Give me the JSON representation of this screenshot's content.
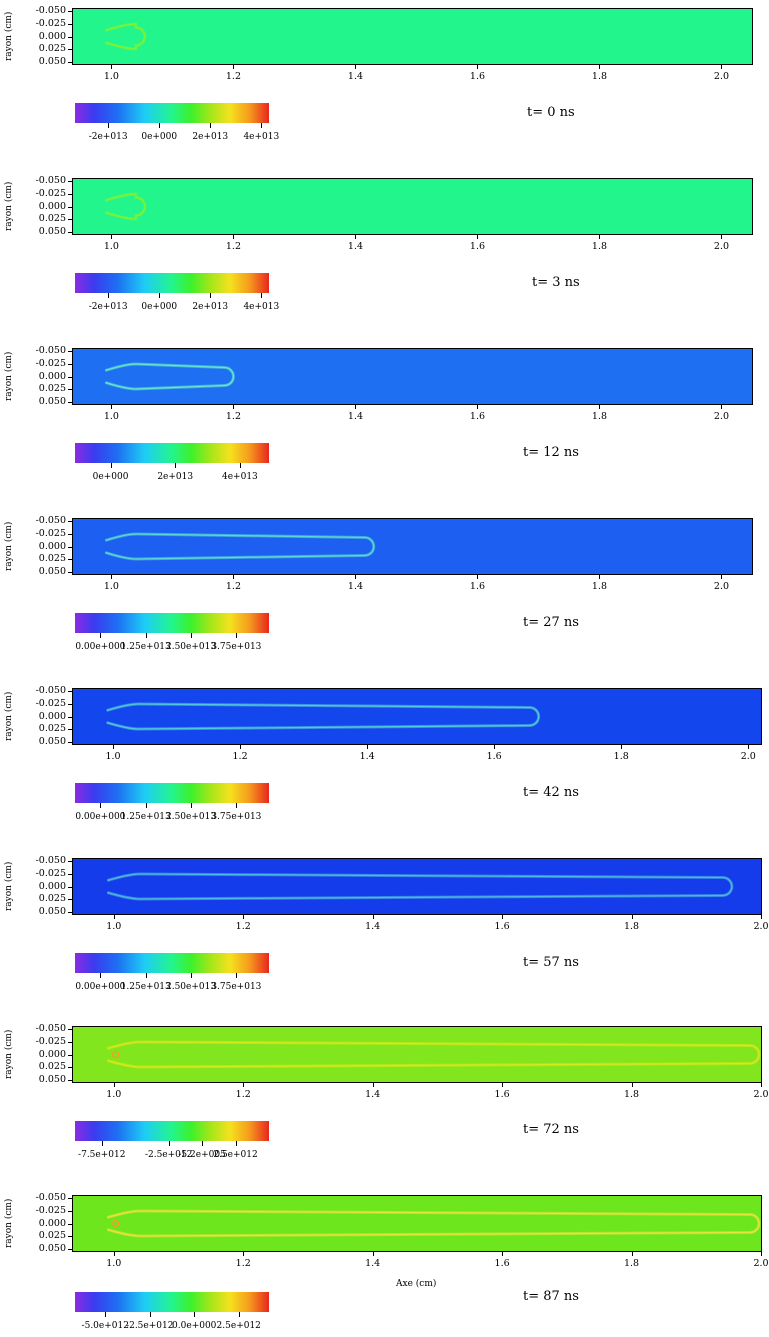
{
  "chart_data": [
    {
      "type": "heatmap",
      "time_label": "t= 0 ns",
      "ylabel": "rayon (cm)",
      "xlabel": "",
      "y_ticks": [
        "-0.050",
        "-0.025",
        "0.000",
        "0.025",
        "0.050"
      ],
      "x_ticks": [
        "1.0",
        "1.2",
        "1.4",
        "1.6",
        "1.8",
        "2.0"
      ],
      "xlim": [
        0.937,
        2.05
      ],
      "ylim": [
        -0.055,
        0.055
      ],
      "front_position": 1.05,
      "background_color": "#23f58d",
      "channel_color": "#7ff230",
      "colorbar_ticks": [
        "-2e+013",
        "0e+000",
        "2e+013",
        "4e+013"
      ],
      "colorbar_values": [
        -20000000000000.0,
        0,
        20000000000000.0,
        40000000000000.0
      ],
      "colorbar_range": [
        -33000000000000.0,
        43000000000000.0
      ]
    },
    {
      "type": "heatmap",
      "time_label": "t= 3 ns",
      "ylabel": "rayon (cm)",
      "xlabel": "",
      "y_ticks": [
        "-0.050",
        "-0.025",
        "0.000",
        "0.025",
        "0.050"
      ],
      "x_ticks": [
        "1.0",
        "1.2",
        "1.4",
        "1.6",
        "1.8",
        "2.0"
      ],
      "xlim": [
        0.937,
        2.05
      ],
      "ylim": [
        -0.055,
        0.055
      ],
      "front_position": 1.05,
      "background_color": "#23f58d",
      "channel_color": "#7ff230",
      "colorbar_ticks": [
        "-2e+013",
        "0e+000",
        "2e+013",
        "4e+013"
      ],
      "colorbar_values": [
        -20000000000000.0,
        0,
        20000000000000.0,
        40000000000000.0
      ],
      "colorbar_range": [
        -33000000000000.0,
        43000000000000.0
      ]
    },
    {
      "type": "heatmap",
      "time_label": "t= 12 ns",
      "ylabel": "rayon (cm)",
      "xlabel": "",
      "y_ticks": [
        "-0.050",
        "-0.025",
        "0.000",
        "0.025",
        "0.050"
      ],
      "x_ticks": [
        "1.0",
        "1.2",
        "1.4",
        "1.6",
        "1.8",
        "2.0"
      ],
      "xlim": [
        0.937,
        2.05
      ],
      "ylim": [
        -0.055,
        0.055
      ],
      "front_position": 1.2,
      "background_color": "#1e6ff2",
      "channel_color": "#63e6c8",
      "colorbar_ticks": [
        "0e+000",
        "2e+013",
        "4e+013"
      ],
      "colorbar_values": [
        0,
        20000000000000.0,
        40000000000000.0
      ],
      "colorbar_range": [
        -11000000000000.0,
        49000000000000.0
      ]
    },
    {
      "type": "heatmap",
      "time_label": "t= 27 ns",
      "ylabel": "rayon (cm)",
      "xlabel": "",
      "y_ticks": [
        "-0.050",
        "-0.025",
        "0.000",
        "0.025",
        "0.050"
      ],
      "x_ticks": [
        "1.0",
        "1.2",
        "1.4",
        "1.6",
        "1.8",
        "2.0"
      ],
      "xlim": [
        0.937,
        2.05
      ],
      "ylim": [
        -0.055,
        0.055
      ],
      "front_position": 1.43,
      "background_color": "#1d5ff0",
      "channel_color": "#5ad8d0",
      "colorbar_ticks": [
        "0.00e+000",
        "1.25e+013",
        "2.50e+013",
        "3.75e+013"
      ],
      "colorbar_values": [
        0,
        12500000000000.0,
        25000000000000.0,
        37500000000000.0
      ],
      "colorbar_range": [
        -7000000000000.0,
        46500000000000.0
      ]
    },
    {
      "type": "heatmap",
      "time_label": "t= 42 ns",
      "ylabel": "rayon (cm)",
      "xlabel": "",
      "y_ticks": [
        "-0.050",
        "-0.025",
        "0.000",
        "0.025",
        "0.050"
      ],
      "x_ticks": [
        "1.0",
        "1.2",
        "1.4",
        "1.6",
        "1.8",
        "2.0"
      ],
      "xlim": [
        0.937,
        2.02
      ],
      "ylim": [
        -0.055,
        0.055
      ],
      "front_position": 1.67,
      "background_color": "#1446ee",
      "channel_color": "#52c8d6",
      "colorbar_ticks": [
        "0.00e+000",
        "1.25e+013",
        "2.50e+013",
        "3.75e+013"
      ],
      "colorbar_values": [
        0,
        12500000000000.0,
        25000000000000.0,
        37500000000000.0
      ],
      "colorbar_range": [
        -7000000000000.0,
        46500000000000.0
      ]
    },
    {
      "type": "heatmap",
      "time_label": "t= 57 ns",
      "ylabel": "rayon (cm)",
      "xlabel": "",
      "y_ticks": [
        "-0.050",
        "-0.025",
        "0.000",
        "0.025",
        "0.050"
      ],
      "x_ticks": [
        "1.0",
        "1.2",
        "1.4",
        "1.6",
        "1.8",
        "2.0"
      ],
      "xlim": [
        0.937,
        2.0
      ],
      "ylim": [
        -0.055,
        0.055
      ],
      "front_position": 1.955,
      "background_color": "#143cea",
      "channel_color": "#4db8dc",
      "colorbar_ticks": [
        "0.00e+000",
        "1.25e+013",
        "2.50e+013",
        "3.75e+013"
      ],
      "colorbar_values": [
        0,
        12500000000000.0,
        25000000000000.0,
        37500000000000.0
      ],
      "colorbar_range": [
        -7000000000000.0,
        46500000000000.0
      ]
    },
    {
      "type": "heatmap",
      "time_label": "t= 72 ns",
      "ylabel": "rayon (cm)",
      "xlabel": "",
      "y_ticks": [
        "-0.050",
        "-0.025",
        "0.000",
        "0.025",
        "0.050"
      ],
      "x_ticks": [
        "1.0",
        "1.2",
        "1.4",
        "1.6",
        "1.8",
        "2.0"
      ],
      "xlim": [
        0.937,
        2.0
      ],
      "ylim": [
        -0.055,
        0.055
      ],
      "front_position": 2.0,
      "background_color": "#82e61e",
      "channel_color": "#d8e61a",
      "colorbar_ticks": [
        "-7.5e+012",
        "-2.5e+012",
        "-5.2e+005",
        "2.5e+012"
      ],
      "colorbar_values": [
        -7500000000000.0,
        -2500000000000.0,
        -520000.0,
        2500000000000.0
      ],
      "colorbar_range": [
        -9500000000000.0,
        5000000000000.0
      ]
    },
    {
      "type": "heatmap",
      "time_label": "t= 87 ns",
      "ylabel": "rayon (cm)",
      "xlabel": "Axe (cm)",
      "y_ticks": [
        "-0.050",
        "-0.025",
        "0.000",
        "0.025",
        "0.050"
      ],
      "x_ticks": [
        "1.0",
        "1.2",
        "1.4",
        "1.6",
        "1.8",
        "2.0"
      ],
      "xlim": [
        0.937,
        2.0
      ],
      "ylim": [
        -0.055,
        0.055
      ],
      "front_position": 2.0,
      "background_color": "#6ee61e",
      "channel_color": "#e8e23a",
      "colorbar_ticks": [
        "-5.0e+012",
        "-2.5e+012",
        "0.0e+000",
        "2.5e+012"
      ],
      "colorbar_values": [
        -5000000000000.0,
        -2500000000000.0,
        0,
        2500000000000.0
      ],
      "colorbar_range": [
        -6700000000000.0,
        4200000000000.0
      ]
    }
  ]
}
